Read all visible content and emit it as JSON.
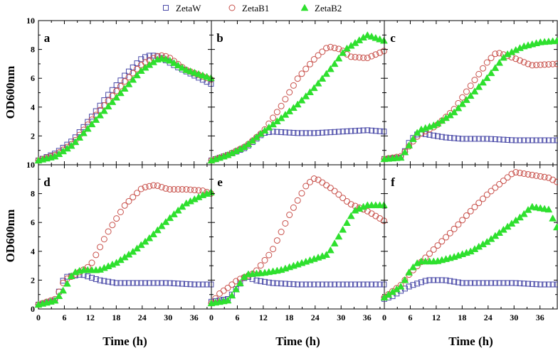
{
  "chart_data": {
    "type": "scatter",
    "layout": "2x3 panel grid",
    "ylabel": "OD600nm",
    "xlabel": "Time (h)",
    "xlim": [
      0,
      40
    ],
    "ylim": [
      0,
      10
    ],
    "xticks": [
      0,
      6,
      12,
      18,
      24,
      30,
      36
    ],
    "xtick_labels": [
      "0",
      "6",
      "12",
      "18",
      "24",
      "30",
      "36"
    ],
    "yticks": [
      0,
      2,
      4,
      6,
      8,
      10
    ],
    "ytick_labels_top": [
      "10",
      "8",
      "6",
      "4",
      "2"
    ],
    "ytick_labels_bottom": [
      "10",
      "8",
      "6",
      "4",
      "2",
      "0"
    ],
    "legend": [
      {
        "name": "ZetaW",
        "marker": "open-square",
        "color": "#4a4aa8"
      },
      {
        "name": "ZetaB1",
        "marker": "open-circle",
        "color": "#c8504a"
      },
      {
        "name": "ZetaB2",
        "marker": "filled-triangle",
        "color": "#2ee02e"
      }
    ],
    "panels": [
      {
        "label": "a",
        "ZetaW": [
          [
            0,
            0.3
          ],
          [
            4,
            0.8
          ],
          [
            8,
            1.7
          ],
          [
            12,
            3.2
          ],
          [
            16,
            4.8
          ],
          [
            20,
            6.2
          ],
          [
            24,
            7.4
          ],
          [
            26,
            7.6
          ],
          [
            28,
            7.5
          ],
          [
            32,
            6.8
          ],
          [
            36,
            6.2
          ],
          [
            40,
            5.6
          ]
        ],
        "ZetaB1": [
          [
            0,
            0.3
          ],
          [
            4,
            0.7
          ],
          [
            8,
            1.5
          ],
          [
            12,
            3.0
          ],
          [
            16,
            4.4
          ],
          [
            20,
            5.8
          ],
          [
            24,
            7.0
          ],
          [
            28,
            7.6
          ],
          [
            30,
            7.5
          ],
          [
            34,
            6.6
          ],
          [
            40,
            5.9
          ]
        ],
        "ZetaB2": [
          [
            0,
            0.3
          ],
          [
            4,
            0.6
          ],
          [
            8,
            1.4
          ],
          [
            12,
            2.7
          ],
          [
            16,
            4.0
          ],
          [
            20,
            5.3
          ],
          [
            24,
            6.6
          ],
          [
            28,
            7.4
          ],
          [
            30,
            7.3
          ],
          [
            34,
            6.6
          ],
          [
            40,
            6.0
          ]
        ]
      },
      {
        "label": "b",
        "ZetaW": [
          [
            0,
            0.3
          ],
          [
            4,
            0.7
          ],
          [
            8,
            1.2
          ],
          [
            12,
            2.2
          ],
          [
            14,
            2.3
          ],
          [
            20,
            2.2
          ],
          [
            24,
            2.2
          ],
          [
            30,
            2.3
          ],
          [
            36,
            2.4
          ],
          [
            40,
            2.3
          ]
        ],
        "ZetaB1": [
          [
            0,
            0.3
          ],
          [
            4,
            0.7
          ],
          [
            8,
            1.3
          ],
          [
            12,
            2.3
          ],
          [
            16,
            4.0
          ],
          [
            20,
            6.0
          ],
          [
            24,
            7.4
          ],
          [
            27,
            8.2
          ],
          [
            30,
            8.0
          ],
          [
            32,
            7.5
          ],
          [
            36,
            7.4
          ],
          [
            40,
            7.9
          ]
        ],
        "ZetaB2": [
          [
            0,
            0.3
          ],
          [
            4,
            0.7
          ],
          [
            8,
            1.3
          ],
          [
            12,
            2.3
          ],
          [
            16,
            3.2
          ],
          [
            20,
            4.2
          ],
          [
            24,
            5.4
          ],
          [
            28,
            6.8
          ],
          [
            31,
            8.0
          ],
          [
            36,
            9.0
          ],
          [
            40,
            8.6
          ]
        ]
      },
      {
        "label": "c",
        "ZetaW": [
          [
            0,
            0.4
          ],
          [
            4,
            0.5
          ],
          [
            6,
            1.7
          ],
          [
            8,
            2.2
          ],
          [
            10,
            2.1
          ],
          [
            14,
            1.9
          ],
          [
            18,
            1.8
          ],
          [
            24,
            1.8
          ],
          [
            30,
            1.7
          ],
          [
            36,
            1.7
          ],
          [
            40,
            1.7
          ]
        ],
        "ZetaB1": [
          [
            0,
            0.4
          ],
          [
            4,
            0.6
          ],
          [
            6,
            1.4
          ],
          [
            8,
            2.1
          ],
          [
            12,
            2.7
          ],
          [
            16,
            3.8
          ],
          [
            20,
            5.5
          ],
          [
            24,
            7.2
          ],
          [
            26,
            7.8
          ],
          [
            30,
            7.4
          ],
          [
            34,
            6.9
          ],
          [
            40,
            7.0
          ]
        ],
        "ZetaB2": [
          [
            0,
            0.4
          ],
          [
            4,
            0.5
          ],
          [
            6,
            1.5
          ],
          [
            8,
            2.4
          ],
          [
            12,
            2.8
          ],
          [
            16,
            3.6
          ],
          [
            20,
            4.8
          ],
          [
            24,
            6.1
          ],
          [
            28,
            7.6
          ],
          [
            32,
            8.2
          ],
          [
            36,
            8.5
          ],
          [
            40,
            8.6
          ]
        ]
      },
      {
        "label": "d",
        "ZetaW": [
          [
            0,
            0.3
          ],
          [
            4,
            0.6
          ],
          [
            6,
            2.2
          ],
          [
            8,
            2.3
          ],
          [
            10,
            2.4
          ],
          [
            14,
            2.0
          ],
          [
            18,
            1.8
          ],
          [
            24,
            1.8
          ],
          [
            30,
            1.8
          ],
          [
            36,
            1.7
          ],
          [
            40,
            1.7
          ]
        ],
        "ZetaB1": [
          [
            0,
            0.3
          ],
          [
            4,
            0.7
          ],
          [
            6,
            2.0
          ],
          [
            8,
            2.3
          ],
          [
            12,
            3.0
          ],
          [
            16,
            5.3
          ],
          [
            20,
            7.2
          ],
          [
            24,
            8.4
          ],
          [
            27,
            8.6
          ],
          [
            30,
            8.3
          ],
          [
            34,
            8.3
          ],
          [
            38,
            8.2
          ],
          [
            40,
            8.0
          ]
        ],
        "ZetaB2": [
          [
            0,
            0.3
          ],
          [
            4,
            0.6
          ],
          [
            6,
            1.4
          ],
          [
            8,
            2.5
          ],
          [
            10,
            2.7
          ],
          [
            14,
            2.7
          ],
          [
            18,
            3.2
          ],
          [
            22,
            4.0
          ],
          [
            26,
            5.0
          ],
          [
            30,
            6.2
          ],
          [
            34,
            7.3
          ],
          [
            38,
            7.9
          ],
          [
            40,
            8.1
          ]
        ]
      },
      {
        "label": "e",
        "ZetaW": [
          [
            0,
            0.5
          ],
          [
            4,
            0.7
          ],
          [
            6,
            1.5
          ],
          [
            8,
            2.3
          ],
          [
            10,
            2.0
          ],
          [
            14,
            1.8
          ],
          [
            20,
            1.7
          ],
          [
            26,
            1.7
          ],
          [
            32,
            1.7
          ],
          [
            36,
            1.7
          ],
          [
            40,
            1.7
          ]
        ],
        "ZetaB1": [
          [
            0,
            0.4
          ],
          [
            2,
            1.1
          ],
          [
            4,
            1.5
          ],
          [
            6,
            2.0
          ],
          [
            10,
            2.5
          ],
          [
            14,
            4.0
          ],
          [
            18,
            6.5
          ],
          [
            22,
            8.6
          ],
          [
            24,
            9.1
          ],
          [
            28,
            8.3
          ],
          [
            32,
            7.3
          ],
          [
            36,
            6.8
          ],
          [
            40,
            6.1
          ]
        ],
        "ZetaB2": [
          [
            0,
            0.4
          ],
          [
            4,
            0.6
          ],
          [
            6,
            1.5
          ],
          [
            8,
            2.4
          ],
          [
            12,
            2.5
          ],
          [
            16,
            2.7
          ],
          [
            20,
            3.1
          ],
          [
            24,
            3.5
          ],
          [
            27,
            3.8
          ],
          [
            30,
            5.3
          ],
          [
            33,
            6.8
          ],
          [
            36,
            7.2
          ],
          [
            40,
            7.2
          ]
        ]
      },
      {
        "label": "f",
        "ZetaW": [
          [
            0,
            0.7
          ],
          [
            2,
            0.9
          ],
          [
            4,
            1.3
          ],
          [
            6,
            1.6
          ],
          [
            8,
            1.8
          ],
          [
            10,
            2.0
          ],
          [
            14,
            2.0
          ],
          [
            18,
            1.8
          ],
          [
            24,
            1.8
          ],
          [
            30,
            1.8
          ],
          [
            36,
            1.7
          ],
          [
            40,
            1.7
          ]
        ],
        "ZetaB1": [
          [
            0,
            0.8
          ],
          [
            4,
            1.7
          ],
          [
            6,
            2.5
          ],
          [
            8,
            3.1
          ],
          [
            12,
            4.3
          ],
          [
            16,
            5.5
          ],
          [
            20,
            6.8
          ],
          [
            24,
            8.0
          ],
          [
            28,
            9.0
          ],
          [
            30,
            9.5
          ],
          [
            34,
            9.3
          ],
          [
            38,
            9.1
          ],
          [
            40,
            8.8
          ]
        ],
        "ZetaB2": [
          [
            0,
            0.8
          ],
          [
            4,
            1.6
          ],
          [
            6,
            2.7
          ],
          [
            8,
            3.3
          ],
          [
            12,
            3.3
          ],
          [
            16,
            3.6
          ],
          [
            20,
            4.0
          ],
          [
            24,
            4.7
          ],
          [
            28,
            5.6
          ],
          [
            32,
            6.5
          ],
          [
            34,
            7.1
          ],
          [
            38,
            6.9
          ],
          [
            40,
            5.6
          ]
        ]
      }
    ]
  }
}
